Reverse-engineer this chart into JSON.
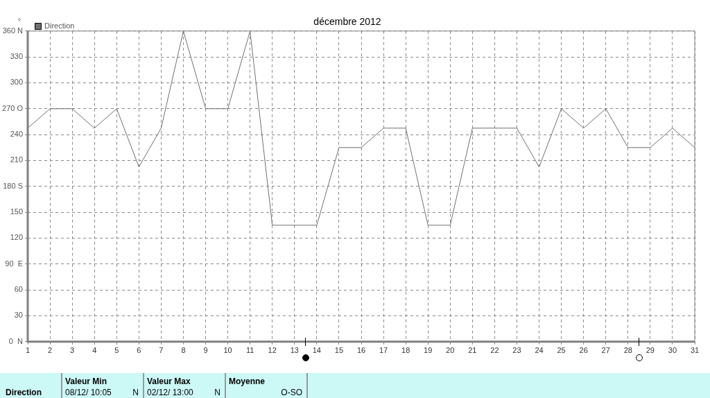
{
  "chart_data": {
    "type": "line",
    "title": "décembre 2012",
    "ylabel": "°",
    "x": [
      1,
      2,
      3,
      4,
      5,
      6,
      7,
      8,
      9,
      10,
      11,
      12,
      13,
      14,
      15,
      16,
      17,
      18,
      19,
      20,
      21,
      22,
      23,
      24,
      25,
      26,
      27,
      28,
      29,
      30,
      31
    ],
    "series": [
      {
        "name": "Direction",
        "color": "#707070",
        "values": [
          247.5,
          270,
          270,
          247.5,
          270,
          202.5,
          247.5,
          360,
          270,
          270,
          360,
          135,
          135,
          135,
          225,
          225,
          247.5,
          247.5,
          135,
          135,
          247.5,
          247.5,
          247.5,
          202.5,
          270,
          247.5,
          270,
          225,
          225,
          247.5,
          225
        ]
      }
    ],
    "xlim": [
      1,
      31
    ],
    "xticks": [
      1,
      2,
      3,
      4,
      5,
      6,
      7,
      8,
      9,
      10,
      11,
      12,
      13,
      14,
      15,
      16,
      17,
      18,
      19,
      20,
      21,
      22,
      23,
      24,
      25,
      26,
      27,
      28,
      29,
      30,
      31
    ],
    "ylim": [
      0,
      360
    ],
    "yticks": [
      {
        "value": 0,
        "label": "0  N"
      },
      30,
      60,
      {
        "value": 90,
        "label": "90  E"
      },
      120,
      150,
      {
        "value": 180,
        "label": "180 S"
      },
      210,
      240,
      {
        "value": 270,
        "label": "270 O"
      },
      300,
      330,
      {
        "value": 360,
        "label": "360 N"
      }
    ],
    "grid": true,
    "legend": "top left",
    "marker": "none",
    "line_style": "solid",
    "annotations": [
      "Direction",
      "Valeur Min",
      "08/12/ 10:05",
      "N",
      "Valeur Max",
      "02/12/ 13:00",
      "N",
      "Moyenne",
      "O-SO"
    ]
  }
}
